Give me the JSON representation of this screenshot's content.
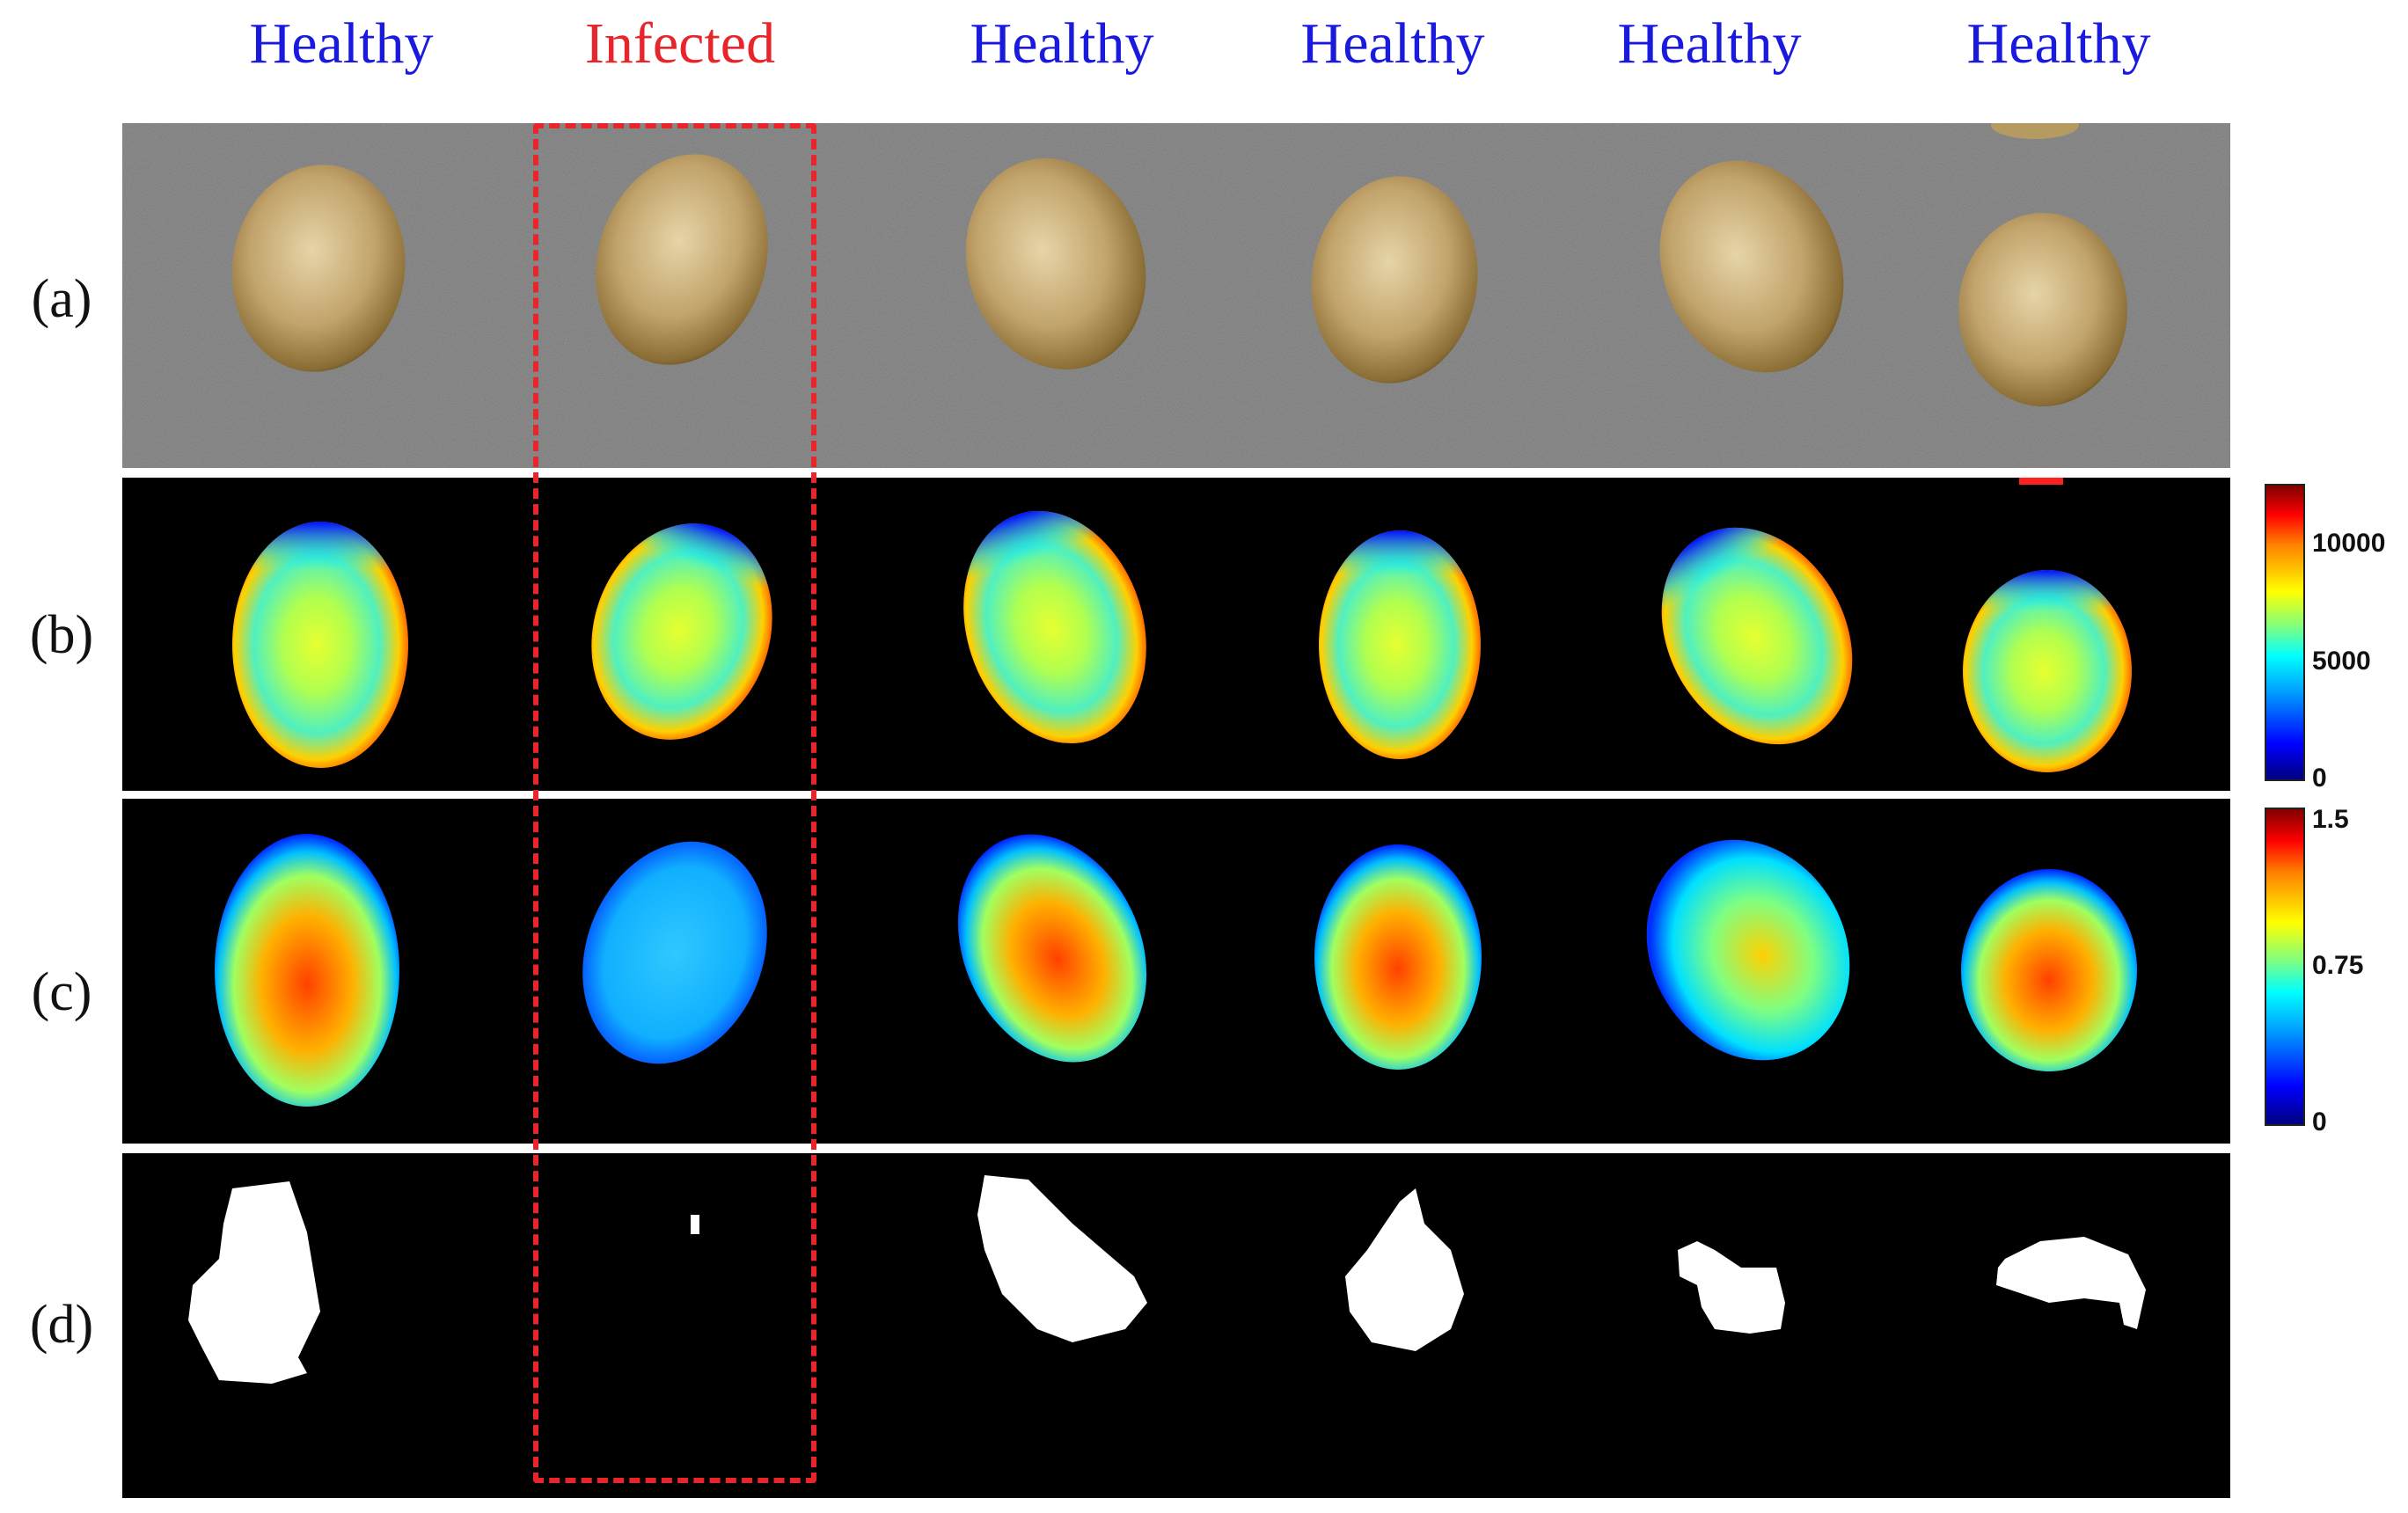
{
  "columns": [
    {
      "label": "Healthy",
      "color": "#1a1adf"
    },
    {
      "label": "Infected",
      "color": "#e8252a"
    },
    {
      "label": "Healthy",
      "color": "#1a1adf"
    },
    {
      "label": "Healthy",
      "color": "#1a1adf"
    },
    {
      "label": "Healthy",
      "color": "#1a1adf"
    },
    {
      "label": "Healthy",
      "color": "#1a1adf"
    }
  ],
  "rows": {
    "a": "(a)",
    "b": "(b)",
    "c": "(c)",
    "d": "(d)"
  },
  "colorbar_b": {
    "max": "10000",
    "mid": "5000",
    "min": "0"
  },
  "colorbar_c": {
    "max": "1.5",
    "mid": "0.75",
    "min": "0"
  },
  "colors": {
    "highlight_box": "#e8252a",
    "seed_base": "#c2a46c",
    "seed_highlight": "#e6d5a8",
    "seed_edge": "#4b3a18",
    "background_photo": "#7b7b7b"
  },
  "colormap": "jet",
  "highlighted_column": "Infected"
}
